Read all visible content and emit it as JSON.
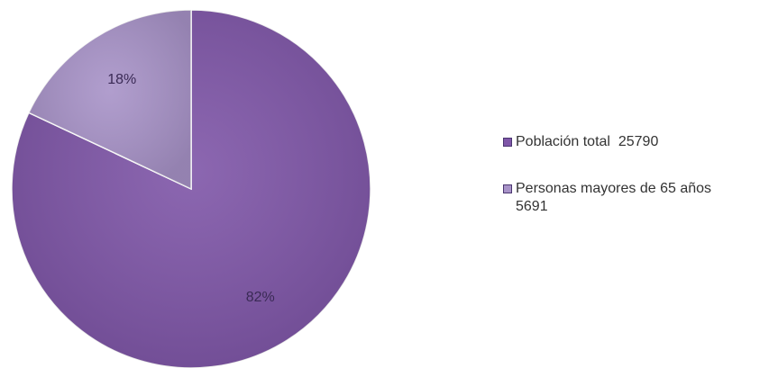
{
  "chart_data": {
    "type": "pie",
    "slices": [
      {
        "name": "Población total  25790",
        "value": 82,
        "label": "82%",
        "color": "#7f56a8"
      },
      {
        "name": "Personas mayores de 65 años\n5691",
        "value": 18,
        "label": "18%",
        "color": "#a893c8"
      }
    ],
    "legend_placement": "right"
  }
}
